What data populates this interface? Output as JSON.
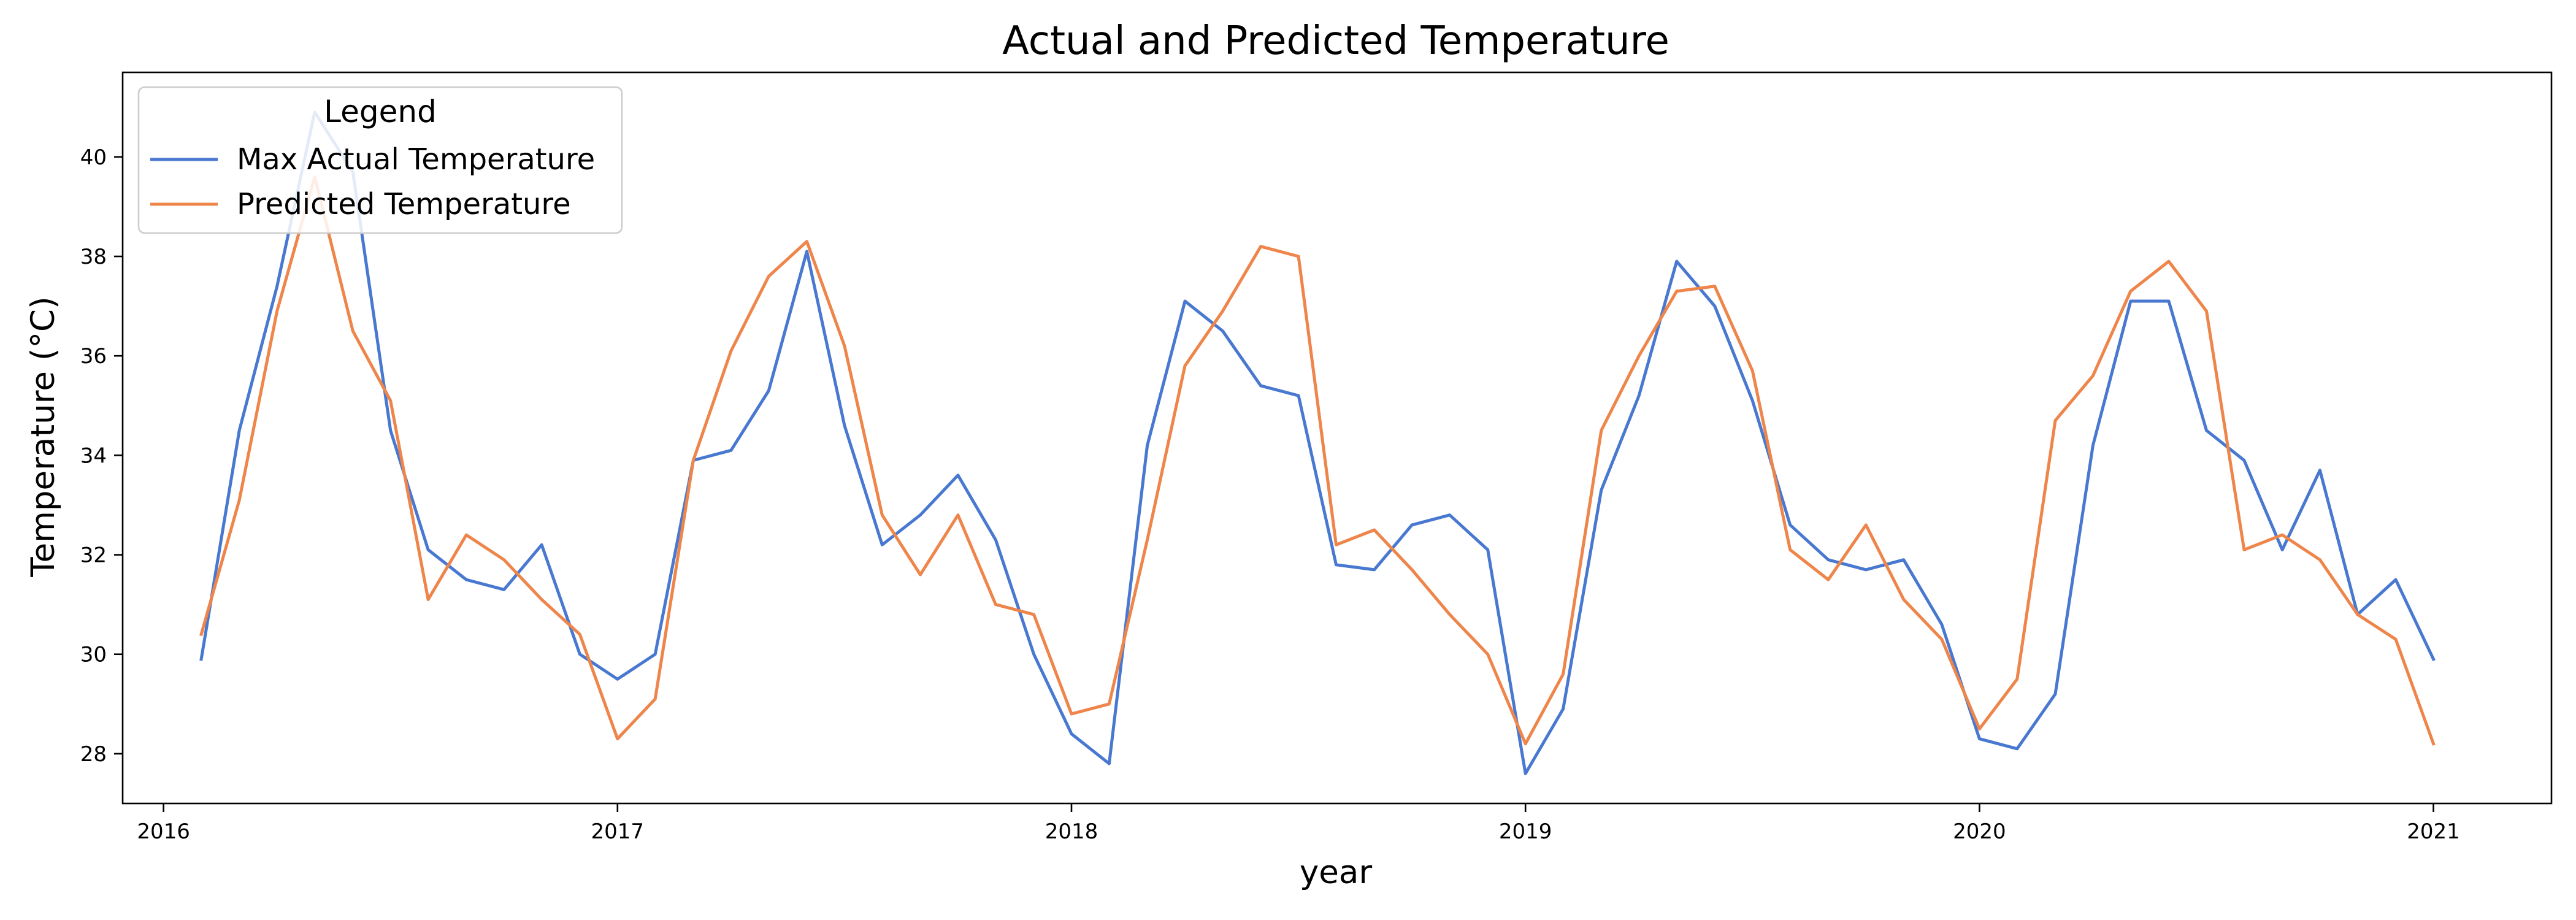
{
  "chart_data": {
    "type": "line",
    "title": "Actual and Predicted Temperature",
    "xlabel": "year",
    "ylabel": "Temperature (°C)",
    "xlim": [
      2015.91,
      2021.26
    ],
    "ylim": [
      27.0,
      41.7
    ],
    "x_ticks": [
      2016,
      2017,
      2018,
      2019,
      2020,
      2021
    ],
    "x_tick_labels": [
      "2016",
      "2017",
      "2018",
      "2019",
      "2020",
      "2021"
    ],
    "y_ticks": [
      28,
      30,
      32,
      34,
      36,
      38,
      40
    ],
    "y_tick_labels": [
      "28",
      "30",
      "32",
      "34",
      "36",
      "38",
      "40"
    ],
    "grid": false,
    "legend": {
      "title": "Legend",
      "position": "top-left"
    },
    "x": [
      2016.083,
      2016.167,
      2016.25,
      2016.333,
      2016.417,
      2016.5,
      2016.583,
      2016.667,
      2016.75,
      2016.833,
      2016.917,
      2017.0,
      2017.083,
      2017.167,
      2017.25,
      2017.333,
      2017.417,
      2017.5,
      2017.583,
      2017.667,
      2017.75,
      2017.833,
      2017.917,
      2018.0,
      2018.083,
      2018.167,
      2018.25,
      2018.333,
      2018.417,
      2018.5,
      2018.583,
      2018.667,
      2018.75,
      2018.833,
      2018.917,
      2019.0,
      2019.083,
      2019.167,
      2019.25,
      2019.333,
      2019.417,
      2019.5,
      2019.583,
      2019.667,
      2019.75,
      2019.833,
      2019.917,
      2020.0,
      2020.083,
      2020.167,
      2020.25,
      2020.333,
      2020.417,
      2020.5,
      2020.583,
      2020.667,
      2020.75,
      2020.833,
      2020.917,
      2021.0
    ],
    "series": [
      {
        "name": "Max Actual Temperature",
        "color": "#4878d0",
        "values": [
          29.9,
          34.5,
          37.4,
          40.9,
          39.7,
          34.5,
          32.1,
          31.5,
          31.3,
          32.2,
          30.0,
          29.5,
          30.0,
          33.9,
          34.1,
          35.3,
          38.1,
          34.6,
          32.2,
          32.8,
          33.6,
          32.3,
          30.0,
          28.4,
          27.8,
          34.2,
          37.1,
          36.5,
          35.4,
          35.2,
          31.8,
          31.7,
          32.6,
          32.8,
          32.1,
          27.6,
          28.9,
          33.3,
          35.2,
          37.9,
          37.0,
          35.1,
          32.6,
          31.9,
          31.7,
          31.9,
          30.6,
          28.3,
          28.1,
          29.2,
          34.2,
          37.1,
          37.1,
          34.5,
          33.9,
          32.1,
          33.7,
          30.8,
          31.5,
          29.9
        ]
      },
      {
        "name": "Predicted Temperature",
        "color": "#ee854a",
        "values": [
          30.4,
          33.1,
          36.9,
          39.6,
          36.5,
          35.1,
          31.1,
          32.4,
          31.9,
          31.1,
          30.4,
          28.3,
          29.1,
          33.9,
          36.1,
          37.6,
          38.3,
          36.2,
          32.8,
          31.6,
          32.8,
          31.0,
          30.8,
          28.8,
          29.0,
          32.3,
          35.8,
          36.9,
          38.2,
          38.0,
          32.2,
          32.5,
          31.7,
          30.8,
          30.0,
          28.2,
          29.6,
          34.5,
          36.0,
          37.3,
          37.4,
          35.7,
          32.1,
          31.5,
          32.6,
          31.1,
          30.3,
          28.5,
          29.5,
          34.7,
          35.6,
          37.3,
          37.9,
          36.9,
          32.1,
          32.4,
          31.9,
          30.8,
          30.3,
          28.2
        ]
      }
    ]
  }
}
